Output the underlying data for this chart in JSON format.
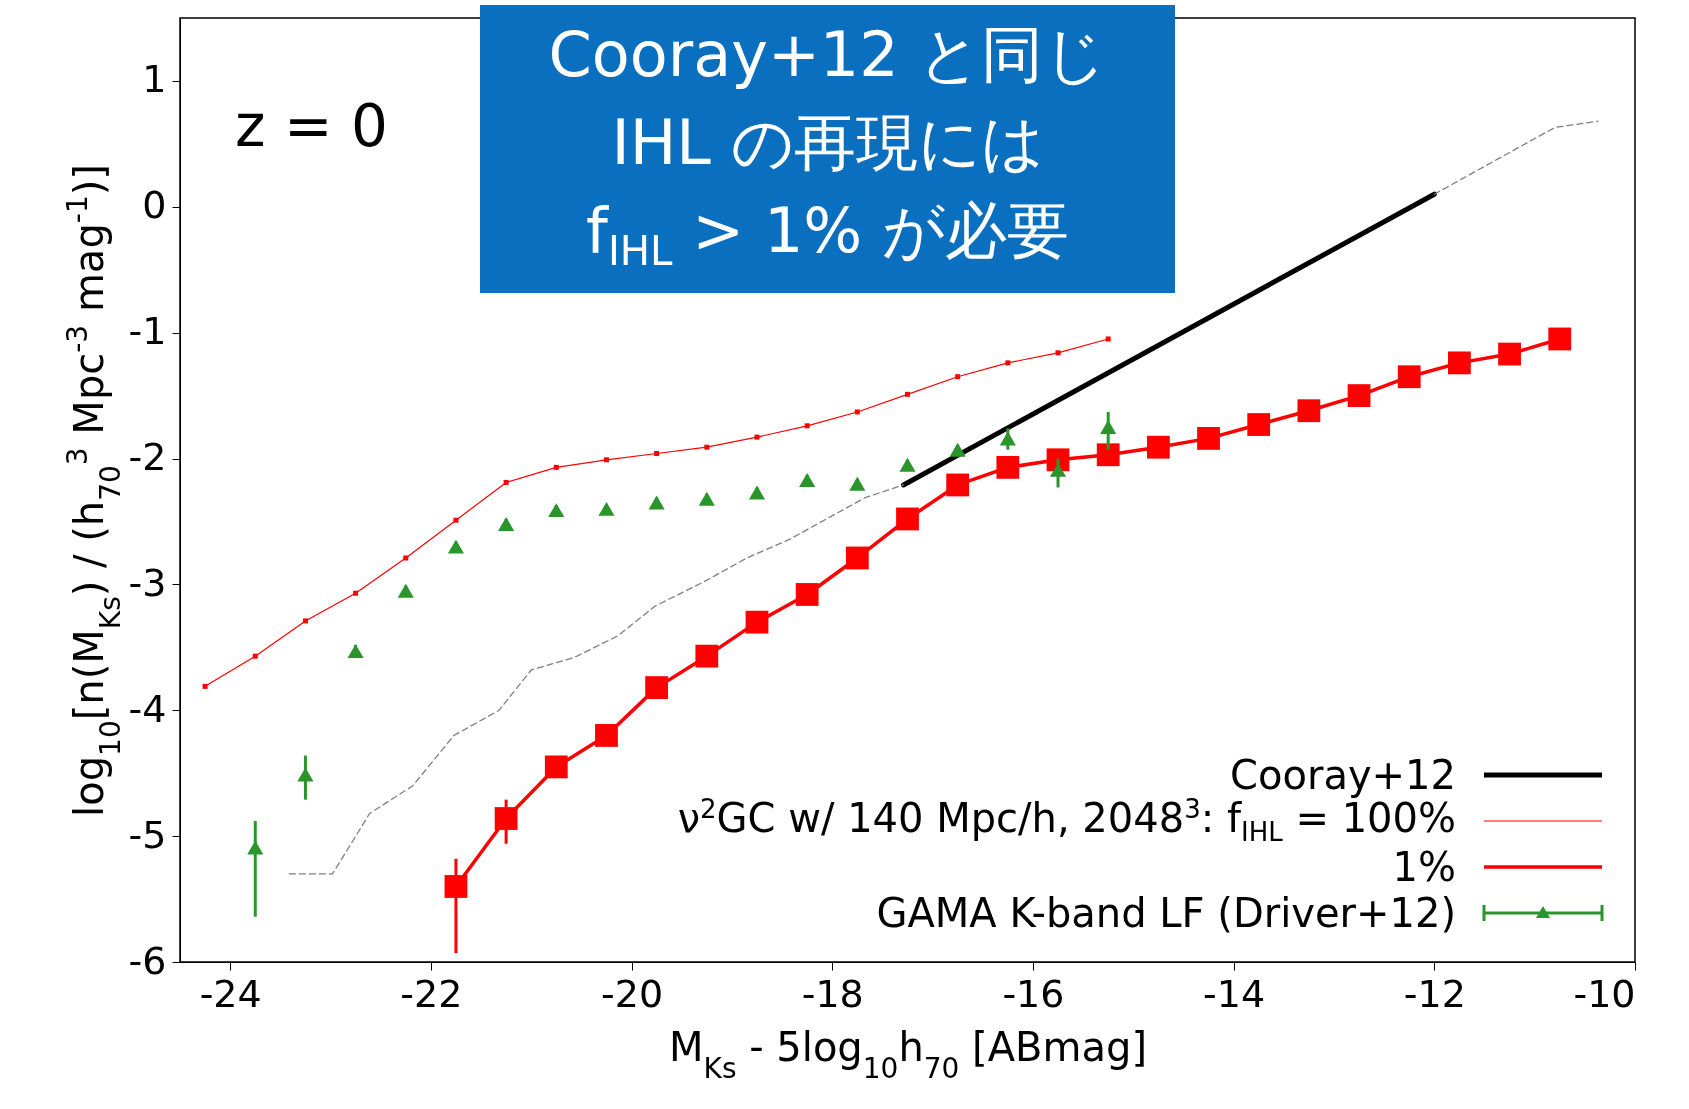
{
  "chart_data": {
    "type": "line",
    "xlabel": "M$_{Ks}$ - 5log$_{10}$h$_{70}$ [ABmag]",
    "ylabel": "log$_{10}$[n(M$_{Ks}$) / (h$_{70}$$^{3}$ Mpc$^{-3}$ mag$^{-1}$)]",
    "xlim": [
      -24.5,
      -10
    ],
    "xticks": [
      -24,
      -22,
      -20,
      -18,
      -16,
      -14,
      -12,
      -10
    ],
    "ylim": [
      -6,
      1.5
    ],
    "yticks": [
      -6,
      -5,
      -4,
      -3,
      -2,
      -1,
      0,
      1
    ],
    "grid": false,
    "legend": "bottom right",
    "annotations": [
      "z = 0",
      "Cooray+12 と同じ",
      "IHL の再現には",
      "f$_{IHL}$ > 1% が必要"
    ],
    "series": [
      {
        "name": "Cooray+12",
        "color": "#000000",
        "marker": "none",
        "line_style": "solid",
        "x": [
          -17.29,
          -12.0
        ],
        "values": [
          -2.21,
          0.1
        ]
      },
      {
        "name": "ν$^{2}$GC w/ 140 Mpc/h, 2048$^{3}$: f$_{IHL}$ = 100%",
        "color": "#ff0000",
        "marker": "square",
        "line_style": "solid",
        "x": [
          -24.25,
          -23.75,
          -23.25,
          -22.75,
          -22.25,
          -21.75,
          -21.25,
          -20.75,
          -20.25,
          -19.75,
          -19.25,
          -18.75,
          -18.25,
          -17.75,
          -17.25,
          -16.75,
          -16.25,
          -15.75,
          -15.25
        ],
        "values": [
          -3.81,
          -3.57,
          -3.29,
          -3.07,
          -2.79,
          -2.49,
          -2.19,
          -2.07,
          -2.01,
          -1.96,
          -1.91,
          -1.83,
          -1.74,
          -1.63,
          -1.49,
          -1.35,
          -1.24,
          -1.16,
          -1.05
        ]
      },
      {
        "name": "1%",
        "color": "#ff0000",
        "marker": "square",
        "line_style": "solid",
        "x": [
          -21.75,
          -21.25,
          -20.75,
          -20.25,
          -19.75,
          -19.25,
          -18.75,
          -18.25,
          -17.75,
          -17.25,
          -16.75,
          -16.25,
          -15.75,
          -15.25,
          -14.75,
          -14.25,
          -13.75,
          -13.25,
          -12.75,
          -12.25,
          -11.75,
          -11.25,
          -10.75
        ],
        "values": [
          -5.4,
          -4.86,
          -4.45,
          -4.2,
          -3.82,
          -3.57,
          -3.3,
          -3.08,
          -2.79,
          -2.48,
          -2.21,
          -2.07,
          -2.01,
          -1.97,
          -1.91,
          -1.84,
          -1.73,
          -1.62,
          -1.5,
          -1.35,
          -1.24,
          -1.17,
          -1.05
        ],
        "errors": [
          [
            -5.93,
            -5.18
          ],
          [
            -5.06,
            -4.71
          ],
          null,
          null,
          null,
          null,
          null,
          null,
          null,
          null,
          null,
          null,
          null,
          null,
          null,
          null,
          null,
          null,
          null,
          null,
          null,
          null,
          null
        ]
      },
      {
        "name": "GAMA K-band LF (Driver+12)",
        "type": "scatter",
        "color": "#2a952a",
        "marker": "triangle",
        "x": [
          -23.75,
          -23.25,
          -22.75,
          -22.25,
          -21.75,
          -21.25,
          -20.75,
          -20.25,
          -19.75,
          -19.25,
          -18.75,
          -18.25,
          -17.75,
          -17.25,
          -16.75,
          -16.25,
          -15.75,
          -15.25
        ],
        "values": [
          -5.09,
          -4.51,
          -3.53,
          -3.05,
          -2.7,
          -2.52,
          -2.41,
          -2.4,
          -2.35,
          -2.32,
          -2.27,
          -2.17,
          -2.2,
          -2.05,
          -1.93,
          -1.84,
          -2.09,
          -1.75
        ],
        "errors": [
          [
            -5.64,
            -4.88
          ],
          [
            -4.71,
            -4.36
          ],
          0.05,
          0.04,
          0.04,
          0.04,
          0.04,
          0.04,
          0.04,
          0.04,
          0.04,
          0.04,
          0.04,
          0.04,
          0.04,
          [
            -1.93,
            -1.76
          ],
          [
            -2.23,
            -2.0
          ],
          [
            -1.93,
            -1.63
          ]
        ]
      },
      {
        "color": "#7f7f7f",
        "marker": "none",
        "line_style": "dashed",
        "x": [
          -23.41,
          -22.98,
          -22.61,
          -22.18,
          -21.77,
          -21.32,
          -21.0,
          -20.57,
          -20.14,
          -19.76,
          -19.28,
          -18.85,
          -18.42,
          -17.99,
          -17.67,
          -17.29,
          -14.6,
          -12.0,
          -10.8,
          -10.37
        ],
        "values": [
          -5.3,
          -5.3,
          -4.82,
          -4.6,
          -4.2,
          -4.0,
          -3.68,
          -3.58,
          -3.41,
          -3.17,
          -2.98,
          -2.79,
          -2.64,
          -2.45,
          -2.31,
          -2.21,
          null,
          0.1,
          0.63,
          0.68
        ]
      }
    ]
  }
}
